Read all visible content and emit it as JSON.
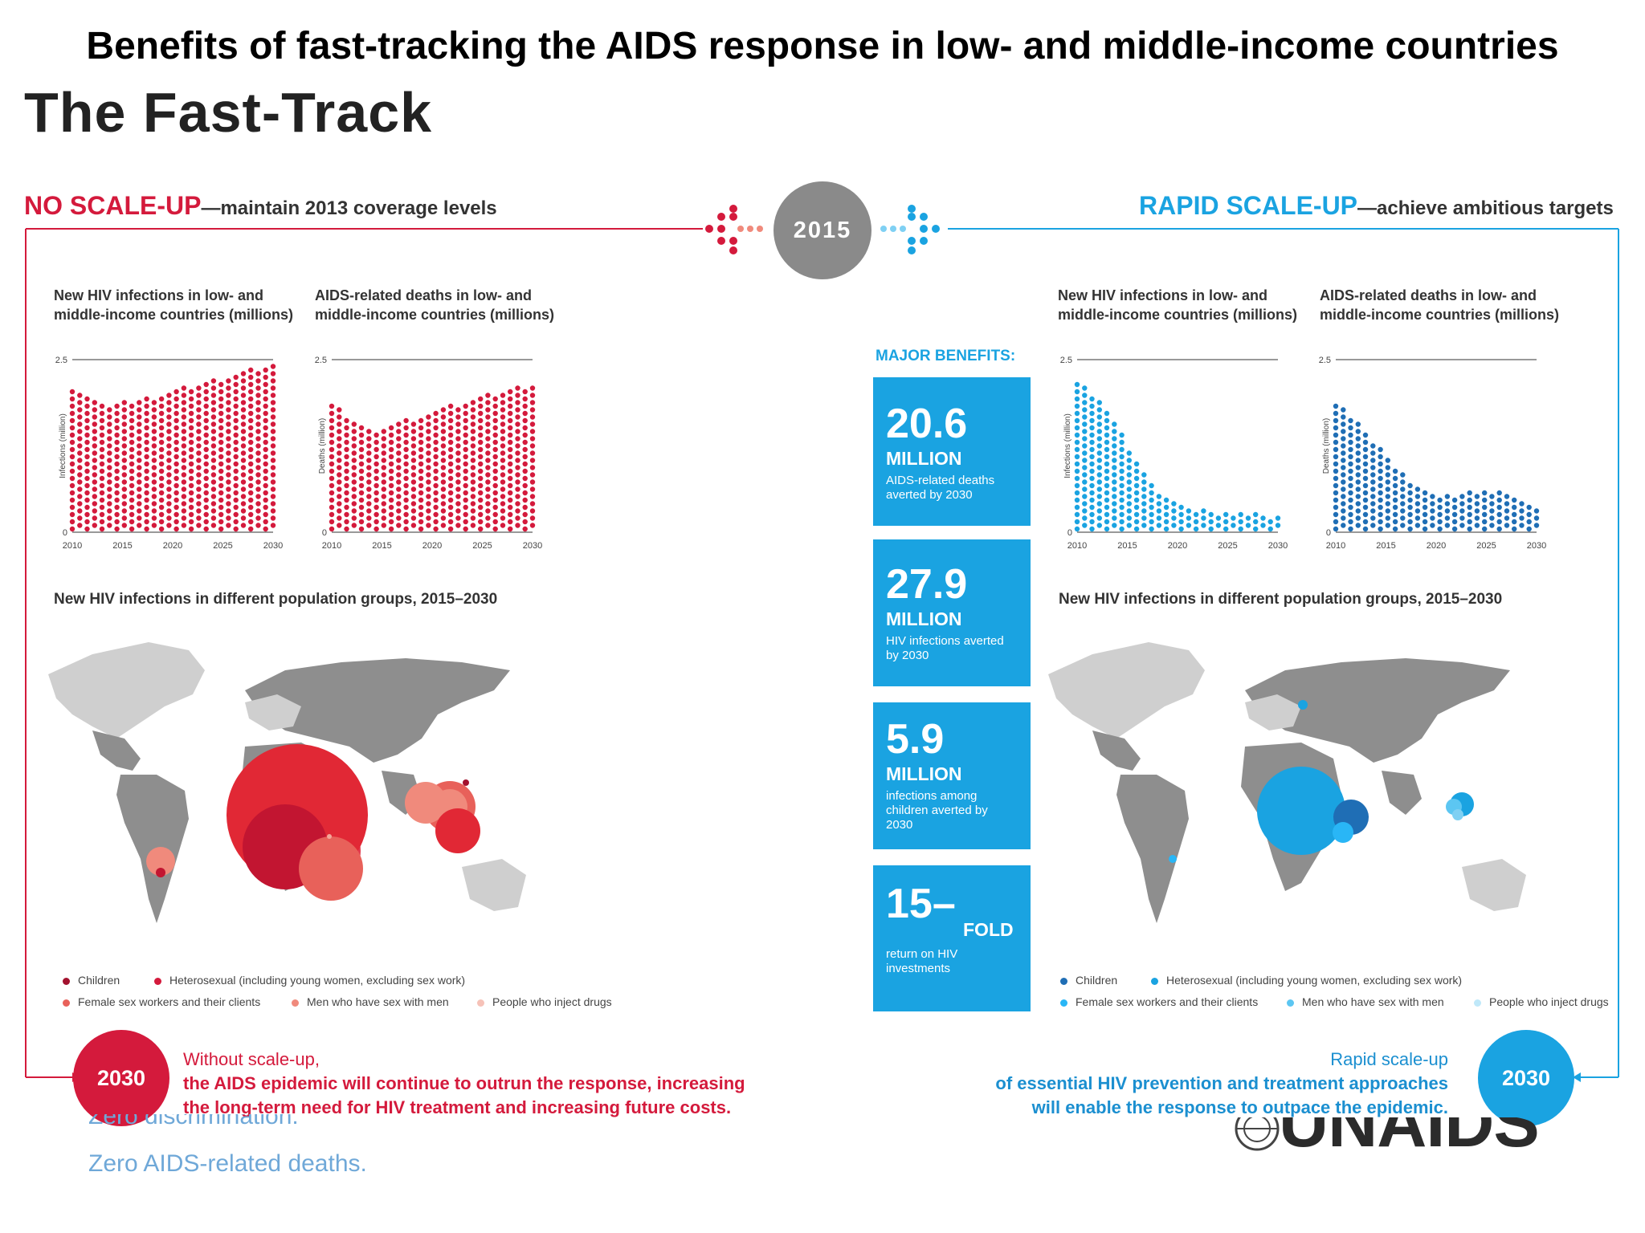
{
  "page_title": "Benefits of fast-tracking the AIDS response in low- and middle-income countries",
  "heading": "The Fast-Track",
  "center_year": "2015",
  "left": {
    "headline": "NO SCALE-UP",
    "subheadline": "—maintain 2013 coverage levels",
    "chart1_title": "New HIV infections in low- and middle-income countries (millions)",
    "chart2_title": "AIDS-related deaths in low- and middle-income countries (millions)",
    "chart1_ylabel": "Infections (million)",
    "chart2_ylabel": "Deaths (million)",
    "map_title": "New HIV infections in different population groups, 2015–2030",
    "end_year": "2030",
    "conclusion_line1": "Without scale-up,",
    "conclusion_line2": "the AIDS epidemic will continue to outrun the response, increasing",
    "conclusion_line3": "the long-term need for HIV treatment and increasing future costs."
  },
  "right": {
    "headline": "RAPID SCALE-UP",
    "subheadline": "—achieve ambitious targets",
    "chart1_title": "New HIV infections in low- and middle-income countries (millions)",
    "chart2_title": "AIDS-related deaths in low- and middle-income countries (millions)",
    "chart1_ylabel": "Infections (million)",
    "chart2_ylabel": "Deaths (million)",
    "map_title": "New HIV infections in different population groups, 2015–2030",
    "end_year": "2030",
    "conclusion_line1": "Rapid scale-up",
    "conclusion_line2": "of essential HIV prevention and treatment approaches",
    "conclusion_line3": "will enable the response to outpace the epidemic."
  },
  "legend": {
    "children": "Children",
    "heterosexual": "Heterosexual (including young women, excluding sex work)",
    "sex_workers": "Female sex workers and their clients",
    "msm": "Men who have sex with men",
    "pwid": "People who inject drugs"
  },
  "benefits": {
    "title": "MAJOR BENEFITS:",
    "items": [
      {
        "value": "20.6",
        "unit": "MILLION",
        "desc": "AIDS-related deaths averted by 2030"
      },
      {
        "value": "27.9",
        "unit": "MILLION",
        "desc": "HIV infections averted by 2030"
      },
      {
        "value": "5.9",
        "unit": "MILLION",
        "desc": "infections among children averted by 2030"
      },
      {
        "value": "15–",
        "unit": "FOLD",
        "desc": "return on HIV investments"
      }
    ]
  },
  "footer": {
    "faded_line1": "Zero discrimination.",
    "faded_line2": "Zero AIDS-related deaths.",
    "logo_text": "UNAIDS"
  },
  "colors": {
    "red": "#d41a3c",
    "blue": "#1aa3e1",
    "dark_blue": "#1f6eb5",
    "grey_circle": "#8a8a8a",
    "map_grey": "#8e8e8e",
    "map_light": "#cfcfcf"
  },
  "chart_data": [
    {
      "id": "noscale-infections",
      "type": "area",
      "title": "New HIV infections in low- and middle-income countries (millions)",
      "ylabel": "Infections (million)",
      "x": [
        2010,
        2012,
        2014,
        2016,
        2018,
        2020,
        2022,
        2024,
        2026,
        2028,
        2030
      ],
      "values": [
        2.1,
        1.95,
        1.85,
        1.9,
        1.97,
        2.05,
        2.12,
        2.2,
        2.28,
        2.37,
        2.45
      ],
      "xticks": [
        "2010",
        "2015",
        "2020",
        "2025",
        "2030"
      ],
      "yticks": [
        "0",
        "2.5"
      ],
      "ylim": [
        0,
        2.5
      ],
      "color": "#d41a3c"
    },
    {
      "id": "noscale-deaths",
      "type": "area",
      "title": "AIDS-related deaths in low- and middle-income countries (millions)",
      "ylabel": "Deaths (million)",
      "x": [
        2010,
        2012,
        2014,
        2016,
        2018,
        2020,
        2022,
        2024,
        2026,
        2028,
        2030
      ],
      "values": [
        1.9,
        1.6,
        1.45,
        1.55,
        1.65,
        1.75,
        1.85,
        1.93,
        2.0,
        2.07,
        2.15
      ],
      "xticks": [
        "2010",
        "2015",
        "2020",
        "2025",
        "2030"
      ],
      "yticks": [
        "0",
        "2.5"
      ],
      "ylim": [
        0,
        2.5
      ],
      "color": "#d41a3c"
    },
    {
      "id": "rapid-infections",
      "type": "area",
      "title": "New HIV infections in low- and middle-income countries (millions)",
      "ylabel": "Infections (million)",
      "x": [
        2010,
        2012,
        2014,
        2016,
        2018,
        2020,
        2022,
        2024,
        2026,
        2028,
        2030
      ],
      "values": [
        2.2,
        1.95,
        1.55,
        1.0,
        0.6,
        0.4,
        0.33,
        0.3,
        0.28,
        0.26,
        0.24
      ],
      "xticks": [
        "2010",
        "2015",
        "2020",
        "2025",
        "2030"
      ],
      "yticks": [
        "0",
        "2.5"
      ],
      "ylim": [
        0,
        2.5
      ],
      "color": "#1aa3e1"
    },
    {
      "id": "rapid-deaths",
      "type": "area",
      "title": "AIDS-related deaths in low- and middle-income countries (millions)",
      "ylabel": "Deaths (million)",
      "x": [
        2010,
        2012,
        2014,
        2016,
        2018,
        2020,
        2022,
        2024,
        2026,
        2028,
        2030
      ],
      "values": [
        1.9,
        1.65,
        1.3,
        0.95,
        0.7,
        0.55,
        0.55,
        0.6,
        0.58,
        0.52,
        0.38
      ],
      "xticks": [
        "2010",
        "2015",
        "2020",
        "2025",
        "2030"
      ],
      "yticks": [
        "0",
        "2.5"
      ],
      "ylim": [
        0,
        2.5
      ],
      "color": "#1f6eb5"
    }
  ]
}
